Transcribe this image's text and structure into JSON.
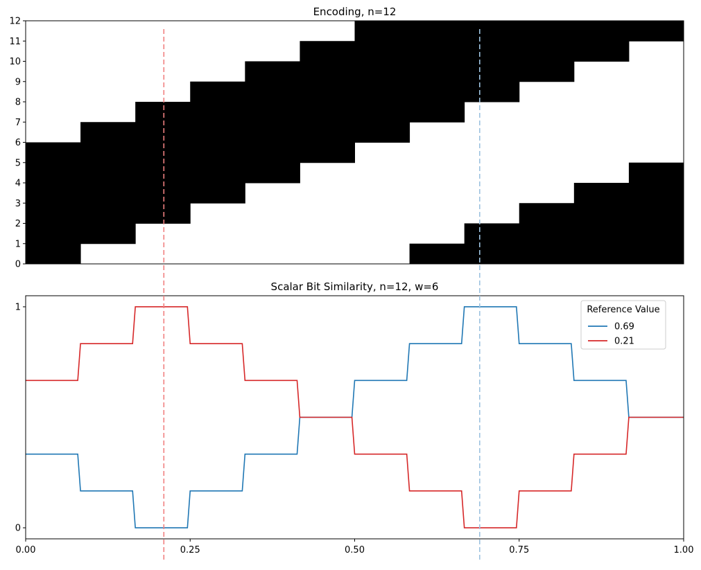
{
  "chart_data": [
    {
      "type": "heatmap",
      "title": "Encoding, n=12",
      "n": 12,
      "active_bits": 6,
      "x_range": [
        0,
        1
      ],
      "ylim": [
        0,
        12
      ],
      "y_ticks": [
        0,
        1,
        2,
        3,
        4,
        5,
        6,
        7,
        8,
        9,
        10,
        11,
        12
      ],
      "x_ticks_visible": false,
      "cell_color": "#000000",
      "background": "#ffffff"
    },
    {
      "type": "line",
      "title": "Scalar Bit Similarity, n=12, w=6",
      "xlim": [
        0,
        1
      ],
      "ylim": [
        -0.05,
        1.05
      ],
      "x_ticks": [
        "0.00",
        "0.25",
        "0.50",
        "0.75",
        "1.00"
      ],
      "x_tick_values": [
        0,
        0.25,
        0.5,
        0.75,
        1.0
      ],
      "y_ticks": [
        "0",
        "1"
      ],
      "y_tick_values": [
        0,
        1
      ],
      "legend": {
        "title": "Reference Value",
        "placement": "top-right"
      },
      "series": [
        {
          "name": "0.69",
          "reference": 0.69,
          "color": "#1f77b4"
        },
        {
          "name": "0.21",
          "reference": 0.21,
          "color": "#d62728"
        }
      ]
    }
  ],
  "reference_lines": [
    {
      "value": 0.21,
      "color": "#f08080"
    },
    {
      "value": 0.69,
      "color": "#9ec3e0"
    }
  ]
}
